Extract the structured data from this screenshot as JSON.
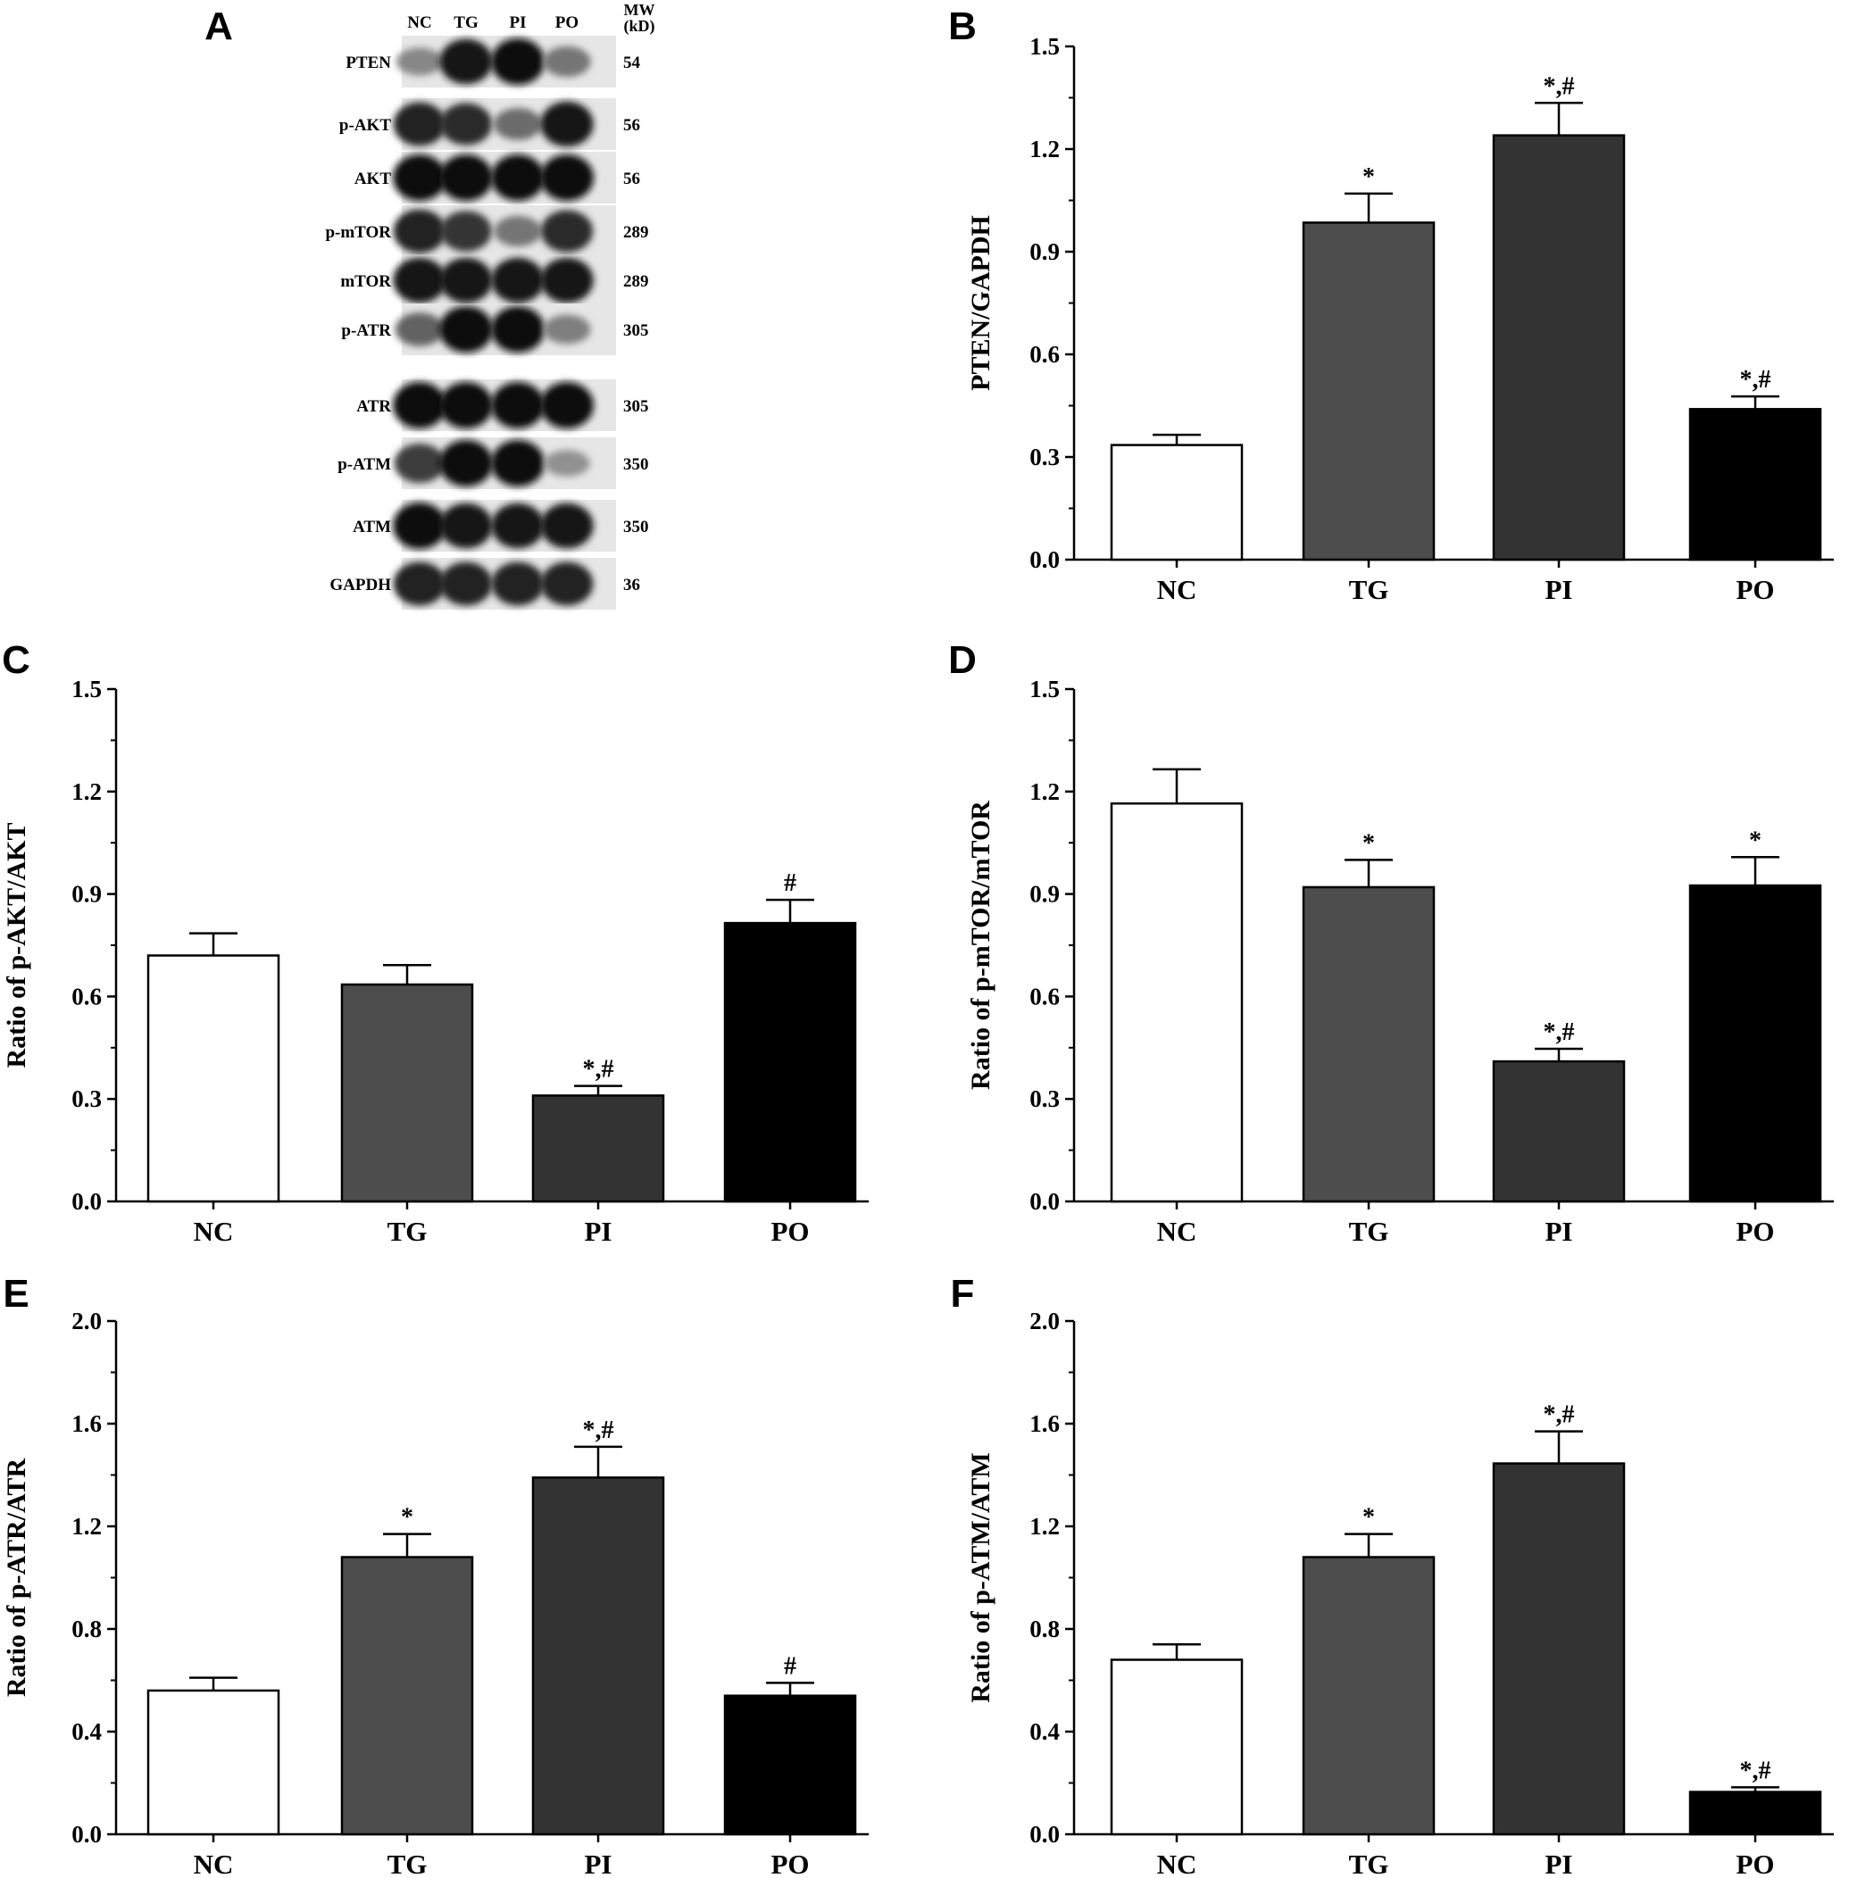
{
  "figure": {
    "blot": {
      "panel_label": "A",
      "lanes": [
        "NC",
        "TG",
        "PI",
        "PO"
      ],
      "mw_header": [
        "MW",
        "(kD)"
      ],
      "rows": [
        {
          "protein": "PTEN",
          "mw": "54",
          "intensity": [
            0.35,
            0.95,
            1.0,
            0.45
          ]
        },
        {
          "protein": "p-AKT",
          "mw": "56",
          "intensity": [
            0.9,
            0.85,
            0.5,
            0.95
          ]
        },
        {
          "protein": "AKT",
          "mw": "56",
          "intensity": [
            1.0,
            1.0,
            1.0,
            1.0
          ]
        },
        {
          "protein": "p-mTOR",
          "mw": "289",
          "intensity": [
            0.9,
            0.8,
            0.45,
            0.85
          ]
        },
        {
          "protein": "mTOR",
          "mw": "289",
          "intensity": [
            0.95,
            0.95,
            0.95,
            0.95
          ]
        },
        {
          "protein": "p-ATR",
          "mw": "305",
          "intensity": [
            0.55,
            1.0,
            1.0,
            0.4
          ]
        },
        {
          "protein": "ATR",
          "mw": "305",
          "intensity": [
            1.0,
            1.0,
            1.0,
            1.0
          ]
        },
        {
          "protein": "p-ATM",
          "mw": "350",
          "intensity": [
            0.75,
            1.0,
            1.0,
            0.3
          ]
        },
        {
          "protein": "ATM",
          "mw": "350",
          "intensity": [
            1.0,
            0.95,
            0.95,
            0.95
          ]
        },
        {
          "protein": "GAPDH",
          "mw": "36",
          "intensity": [
            0.9,
            0.9,
            0.9,
            0.9
          ]
        }
      ]
    }
  },
  "colors": {
    "NC": "#ffffff",
    "TG": "#4d4d4d",
    "PI": "#333333",
    "PO": "#000000",
    "axis": "#000000"
  },
  "chart_data": [
    {
      "panel": "B",
      "type": "bar",
      "categories": [
        "NC",
        "TG",
        "PI",
        "PO"
      ],
      "values": [
        0.335,
        0.985,
        1.24,
        0.44
      ],
      "errors": [
        0.03,
        0.085,
        0.095,
        0.037
      ],
      "annotations": [
        "",
        "*",
        "*,#",
        "*,#"
      ],
      "ylabel": "PTEN/GAPDH",
      "ylim": [
        0,
        1.5
      ],
      "yticks": [
        "0.0",
        "0.3",
        "0.6",
        "0.9",
        "1.2",
        "1.5"
      ]
    },
    {
      "panel": "C",
      "type": "bar",
      "categories": [
        "NC",
        "TG",
        "PI",
        "PO"
      ],
      "values": [
        0.72,
        0.635,
        0.31,
        0.815
      ],
      "errors": [
        0.065,
        0.057,
        0.028,
        0.068
      ],
      "annotations": [
        "",
        "",
        "*,#",
        "#"
      ],
      "ylabel": "Ratio of p-AKT/AKT",
      "ylim": [
        0,
        1.5
      ],
      "yticks": [
        "0.0",
        "0.3",
        "0.6",
        "0.9",
        "1.2",
        "1.5"
      ]
    },
    {
      "panel": "D",
      "type": "bar",
      "categories": [
        "NC",
        "TG",
        "PI",
        "PO"
      ],
      "values": [
        1.165,
        0.92,
        0.41,
        0.925
      ],
      "errors": [
        0.1,
        0.08,
        0.037,
        0.083
      ],
      "annotations": [
        "",
        "*",
        "*,#",
        "*"
      ],
      "ylabel": "Ratio of p-mTOR/mTOR",
      "ylim": [
        0,
        1.5
      ],
      "yticks": [
        "0.0",
        "0.3",
        "0.6",
        "0.9",
        "1.2",
        "1.5"
      ]
    },
    {
      "panel": "E",
      "type": "bar",
      "categories": [
        "NC",
        "TG",
        "PI",
        "PO"
      ],
      "values": [
        0.56,
        1.08,
        1.39,
        0.54
      ],
      "errors": [
        0.05,
        0.09,
        0.12,
        0.05
      ],
      "annotations": [
        "",
        "*",
        "*,#",
        "#"
      ],
      "ylabel": "Ratio of p-ATR/ATR",
      "ylim": [
        0,
        2.0
      ],
      "yticks": [
        "0.0",
        "0.4",
        "0.8",
        "1.2",
        "1.6",
        "2.0"
      ]
    },
    {
      "panel": "F",
      "type": "bar",
      "categories": [
        "NC",
        "TG",
        "PI",
        "PO"
      ],
      "values": [
        0.68,
        1.08,
        1.445,
        0.165
      ],
      "errors": [
        0.06,
        0.09,
        0.125,
        0.018
      ],
      "annotations": [
        "",
        "*",
        "*,#",
        "*,#"
      ],
      "ylabel": "Ratio of p-ATM/ATM",
      "ylim": [
        0,
        2.0
      ],
      "yticks": [
        "0.0",
        "0.4",
        "0.8",
        "1.2",
        "1.6",
        "2.0"
      ]
    }
  ]
}
